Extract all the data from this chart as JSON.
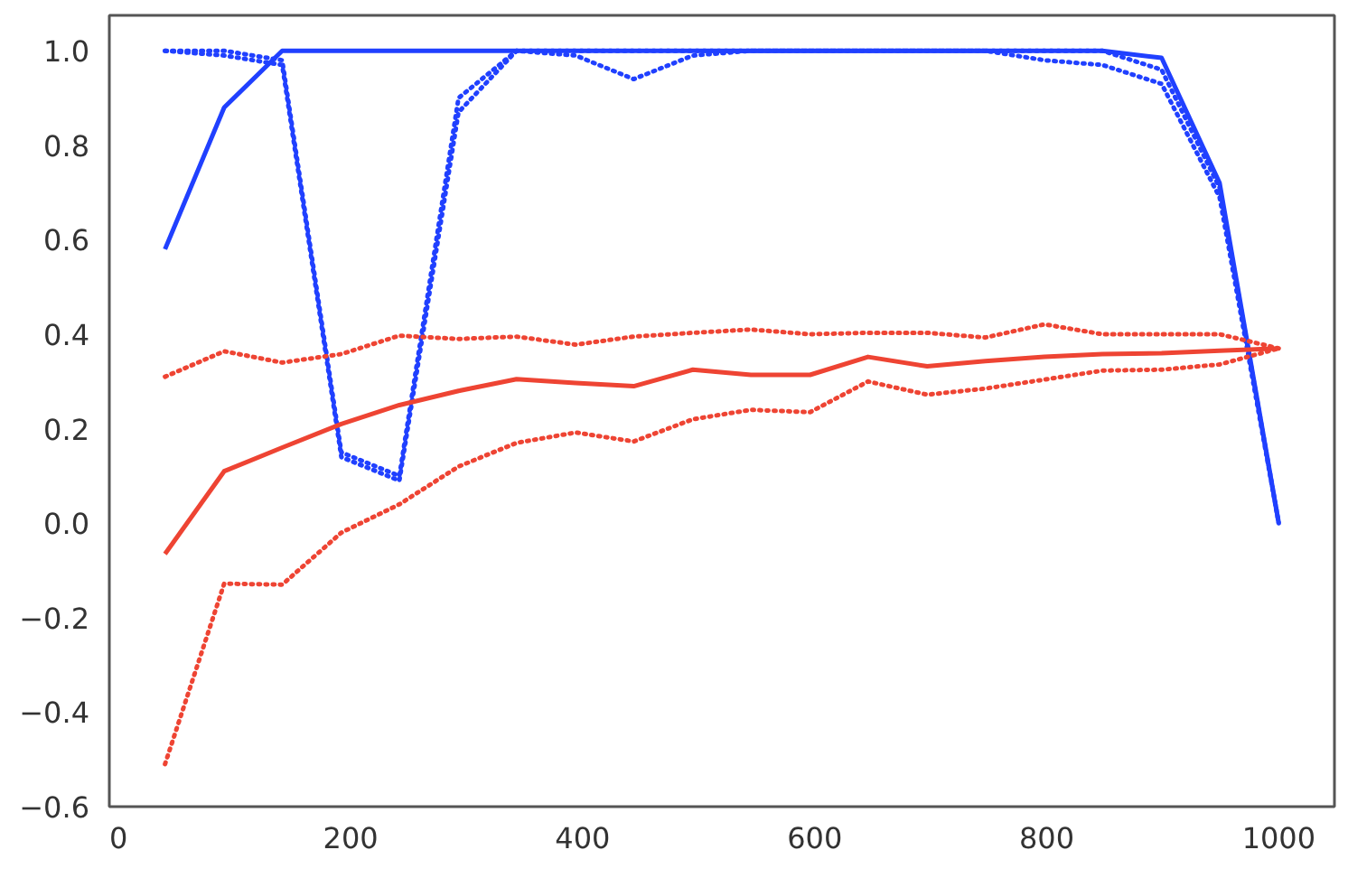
{
  "chart_data": {
    "type": "line",
    "x": [
      40,
      91,
      141,
      192,
      242,
      293,
      343,
      394,
      444,
      495,
      545,
      596,
      646,
      697,
      747,
      798,
      848,
      899,
      949,
      1000
    ],
    "series": [
      {
        "color": "#2040ff",
        "line_style": "solid",
        "values": [
          0.58,
          0.88,
          1.0,
          1.0,
          1.0,
          1.0,
          1.0,
          1.0,
          1.0,
          1.0,
          1.0,
          1.0,
          1.0,
          1.0,
          1.0,
          1.0,
          1.0,
          0.985,
          0.72,
          0.0
        ]
      },
      {
        "color": "#2040ff",
        "line_style": "dotted",
        "values": [
          1.0,
          1.0,
          0.98,
          0.15,
          0.1,
          0.9,
          1.0,
          1.0,
          1.0,
          1.0,
          1.0,
          1.0,
          1.0,
          1.0,
          1.0,
          1.0,
          1.0,
          0.96,
          0.71,
          0.0
        ]
      },
      {
        "color": "#2040ff",
        "line_style": "dotted",
        "values": [
          1.0,
          0.99,
          0.97,
          0.14,
          0.09,
          0.87,
          1.0,
          0.99,
          0.94,
          0.99,
          1.0,
          1.0,
          1.0,
          1.0,
          1.0,
          0.98,
          0.97,
          0.93,
          0.69,
          0.0
        ]
      },
      {
        "color": "#ee4433",
        "line_style": "solid",
        "values": [
          -0.065,
          0.11,
          0.16,
          0.21,
          0.25,
          0.28,
          0.305,
          0.297,
          0.29,
          0.325,
          0.314,
          0.314,
          0.352,
          0.332,
          0.343,
          0.352,
          0.358,
          0.36,
          0.365,
          0.37
        ]
      },
      {
        "color": "#ee4433",
        "line_style": "dotted",
        "values": [
          0.31,
          0.364,
          0.34,
          0.358,
          0.397,
          0.39,
          0.395,
          0.378,
          0.395,
          0.403,
          0.41,
          0.4,
          0.403,
          0.403,
          0.393,
          0.421,
          0.4,
          0.4,
          0.4,
          0.37
        ]
      },
      {
        "color": "#ee4433",
        "line_style": "dotted",
        "values": [
          -0.51,
          -0.128,
          -0.13,
          -0.02,
          0.04,
          0.12,
          0.17,
          0.192,
          0.173,
          0.22,
          0.24,
          0.235,
          0.3,
          0.272,
          0.285,
          0.304,
          0.323,
          0.325,
          0.336,
          0.37
        ]
      }
    ],
    "xlim": [
      -8,
      1048
    ],
    "ylim": [
      -0.6,
      1.075
    ],
    "xticks": [
      0,
      200,
      400,
      600,
      800,
      1000
    ],
    "yticks": [
      {
        "value": -0.6,
        "label": "−0.6"
      },
      {
        "value": -0.4,
        "label": "−0.4"
      },
      {
        "value": -0.2,
        "label": "−0.2"
      },
      {
        "value": 0,
        "label": "0.0"
      },
      {
        "value": 0.2,
        "label": "0.2"
      },
      {
        "value": 0.4,
        "label": "0.4"
      },
      {
        "value": 0.6,
        "label": "0.6"
      },
      {
        "value": 0.8,
        "label": "0.8"
      },
      {
        "value": 1.0,
        "label": "1.0"
      }
    ],
    "grid": false
  }
}
